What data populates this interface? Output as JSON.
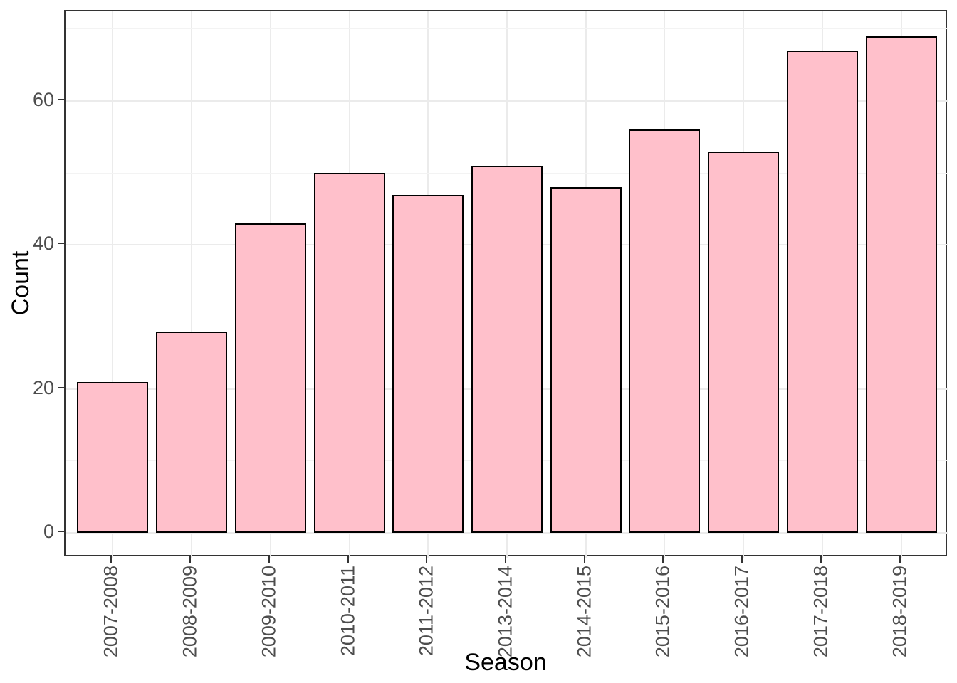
{
  "chart_data": {
    "type": "bar",
    "title": "",
    "xlabel": "Season",
    "ylabel": "Count",
    "categories": [
      "2007-2008",
      "2008-2009",
      "2009-2010",
      "2010-2011",
      "2011-2012",
      "2013-2014",
      "2014-2015",
      "2015-2016",
      "2016-2017",
      "2017-2018",
      "2018-2019"
    ],
    "values": [
      21,
      28,
      43,
      50,
      47,
      51,
      48,
      56,
      53,
      67,
      69
    ],
    "yticks_major": [
      0,
      20,
      40,
      60
    ],
    "yticks_minor": [
      10,
      30,
      50,
      70
    ],
    "ylim": [
      -3.45,
      72.45
    ],
    "grid": "horizontal major+minor gridlines, vertical major gridlines at category centers",
    "legend_position": "none",
    "colors": {
      "bar_fill": "#FFC0CB",
      "bar_border": "#000000",
      "panel_border": "#333333",
      "panel_background": "#FFFFFF",
      "grid_major": "#EBEBEB",
      "grid_minor": "#F3F3F3",
      "tick_label": "#4D4D4D",
      "axis_title": "#000000"
    }
  }
}
